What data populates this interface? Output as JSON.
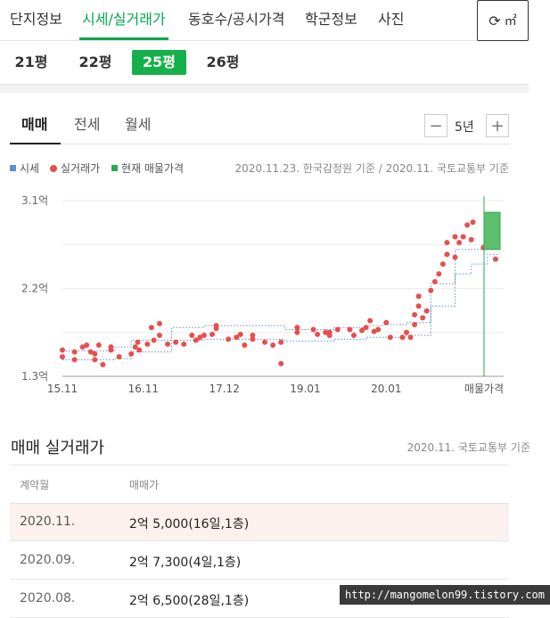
{
  "nav": {
    "tabs": [
      {
        "label": "단지정보"
      },
      {
        "label": "시세/실거래가"
      },
      {
        "label": "동호수/공시가격"
      },
      {
        "label": "학군정보"
      },
      {
        "label": "사진"
      }
    ],
    "corner_label": "㎡"
  },
  "sizes": [
    "21평",
    "22평",
    "25평",
    "26평"
  ],
  "subtabs": [
    "매매",
    "전세",
    "월세"
  ],
  "period": {
    "value": "5년",
    "minus": "−",
    "plus": "+"
  },
  "legend": {
    "items": [
      {
        "label": "시세",
        "color": "#5b8fd6"
      },
      {
        "label": "실거래가",
        "color": "#e84e4e"
      },
      {
        "label": "현재 매물가격",
        "color": "#2aaa4a"
      }
    ],
    "basis": "2020.11.23. 한국감정원 기준 / 2020.11. 국토교통부 기준"
  },
  "chart_data": {
    "type": "scatter",
    "y_ticks": [
      "3.1억",
      "2.2억",
      "1.3억"
    ],
    "ylim": [
      1.3,
      3.1
    ],
    "x_ticks": [
      "15.11",
      "16.11",
      "17.12",
      "19.01",
      "20.01",
      "매물가격"
    ],
    "grid": true,
    "series": [
      {
        "name": "실거래가",
        "color": "#e84e4e",
        "points": [
          [
            2015.85,
            1.57
          ],
          [
            2015.85,
            1.5
          ],
          [
            2016.0,
            1.55
          ],
          [
            2016.0,
            1.47
          ],
          [
            2016.1,
            1.6
          ],
          [
            2016.15,
            1.62
          ],
          [
            2016.2,
            1.55
          ],
          [
            2016.25,
            1.47
          ],
          [
            2016.25,
            1.53
          ],
          [
            2016.3,
            1.62
          ],
          [
            2016.35,
            1.42
          ],
          [
            2016.45,
            1.6
          ],
          [
            2016.45,
            1.57
          ],
          [
            2016.55,
            1.5
          ],
          [
            2016.7,
            1.53
          ],
          [
            2016.75,
            1.6
          ],
          [
            2016.78,
            1.65
          ],
          [
            2016.8,
            1.57
          ],
          [
            2016.9,
            1.63
          ],
          [
            2016.95,
            1.8
          ],
          [
            2016.98,
            1.67
          ],
          [
            2017.05,
            1.84
          ],
          [
            2017.05,
            1.72
          ],
          [
            2017.15,
            1.63
          ],
          [
            2017.25,
            1.65
          ],
          [
            2017.35,
            1.63
          ],
          [
            2017.45,
            1.72
          ],
          [
            2017.5,
            1.67
          ],
          [
            2017.55,
            1.7
          ],
          [
            2017.6,
            1.72
          ],
          [
            2017.7,
            1.73
          ],
          [
            2017.75,
            1.82
          ],
          [
            2017.75,
            1.79
          ],
          [
            2017.9,
            1.68
          ],
          [
            2018.0,
            1.7
          ],
          [
            2018.05,
            1.73
          ],
          [
            2018.1,
            1.62
          ],
          [
            2018.2,
            1.68
          ],
          [
            2018.2,
            1.72
          ],
          [
            2018.35,
            1.65
          ],
          [
            2018.45,
            1.62
          ],
          [
            2018.55,
            1.43
          ],
          [
            2018.55,
            1.65
          ],
          [
            2018.75,
            1.75
          ],
          [
            2018.75,
            1.8
          ],
          [
            2018.95,
            1.78
          ],
          [
            2019.0,
            1.73
          ],
          [
            2019.1,
            1.75
          ],
          [
            2019.15,
            1.75
          ],
          [
            2019.15,
            1.72
          ],
          [
            2019.25,
            1.78
          ],
          [
            2019.4,
            1.78
          ],
          [
            2019.45,
            1.72
          ],
          [
            2019.55,
            1.77
          ],
          [
            2019.6,
            1.8
          ],
          [
            2019.65,
            1.87
          ],
          [
            2019.7,
            1.76
          ],
          [
            2019.75,
            1.78
          ],
          [
            2019.85,
            1.85
          ],
          [
            2019.9,
            1.7
          ],
          [
            2020.05,
            1.7
          ],
          [
            2020.1,
            1.75
          ],
          [
            2020.15,
            1.7
          ],
          [
            2020.2,
            1.83
          ],
          [
            2020.2,
            1.93
          ],
          [
            2020.25,
            2.02
          ],
          [
            2020.25,
            2.12
          ],
          [
            2020.3,
            1.9
          ],
          [
            2020.35,
            1.97
          ],
          [
            2020.4,
            2.18
          ],
          [
            2020.45,
            2.27
          ],
          [
            2020.5,
            2.35
          ],
          [
            2020.55,
            2.45
          ],
          [
            2020.6,
            2.55
          ],
          [
            2020.6,
            2.67
          ],
          [
            2020.7,
            2.73
          ],
          [
            2020.7,
            2.52
          ],
          [
            2020.75,
            2.67
          ],
          [
            2020.8,
            2.73
          ],
          [
            2020.85,
            2.85
          ],
          [
            2020.9,
            2.7
          ],
          [
            2020.92,
            2.88
          ],
          [
            2021.05,
            2.62
          ],
          [
            2021.1,
            2.72
          ],
          [
            2021.2,
            2.5
          ]
        ]
      },
      {
        "name": "시세",
        "color": "#5b8fd6",
        "upper": [
          [
            2015.85,
            1.56
          ],
          [
            2016.5,
            1.6
          ],
          [
            2016.7,
            1.67
          ],
          [
            2017.2,
            1.8
          ],
          [
            2017.6,
            1.82
          ],
          [
            2018.5,
            1.82
          ],
          [
            2018.6,
            1.78
          ],
          [
            2019.2,
            1.8
          ],
          [
            2019.6,
            1.82
          ],
          [
            2019.8,
            1.83
          ],
          [
            2020.1,
            1.85
          ],
          [
            2020.4,
            2.25
          ],
          [
            2020.7,
            2.6
          ],
          [
            2020.9,
            2.6
          ],
          [
            2021.1,
            2.72
          ],
          [
            2021.25,
            2.72
          ]
        ],
        "lower": [
          [
            2015.85,
            1.47
          ],
          [
            2016.5,
            1.48
          ],
          [
            2016.7,
            1.55
          ],
          [
            2017.2,
            1.67
          ],
          [
            2017.6,
            1.68
          ],
          [
            2018.5,
            1.68
          ],
          [
            2018.6,
            1.66
          ],
          [
            2019.2,
            1.68
          ],
          [
            2019.6,
            1.7
          ],
          [
            2019.8,
            1.7
          ],
          [
            2020.1,
            1.72
          ],
          [
            2020.4,
            2.02
          ],
          [
            2020.7,
            2.35
          ],
          [
            2020.9,
            2.45
          ],
          [
            2021.1,
            2.55
          ],
          [
            2021.25,
            2.55
          ]
        ]
      },
      {
        "name": "현재 매물가격",
        "color": "#2aaa4a",
        "range": [
          2.6,
          2.98
        ]
      }
    ]
  },
  "transactions": {
    "title": "매매 실거래가",
    "basis": "2020.11. 국토교통부 기준",
    "headers": [
      "계약월",
      "매매가"
    ],
    "rows": [
      {
        "month": "2020.11.",
        "price": "2억 5,000(16일,1층)"
      },
      {
        "month": "2020.09.",
        "price": "2억 7,300(4일,1층)"
      },
      {
        "month": "2020.08.",
        "price": "2억 6,500(28일,1층)"
      }
    ]
  },
  "watermark": "http://mangomelon99.tistory.com"
}
